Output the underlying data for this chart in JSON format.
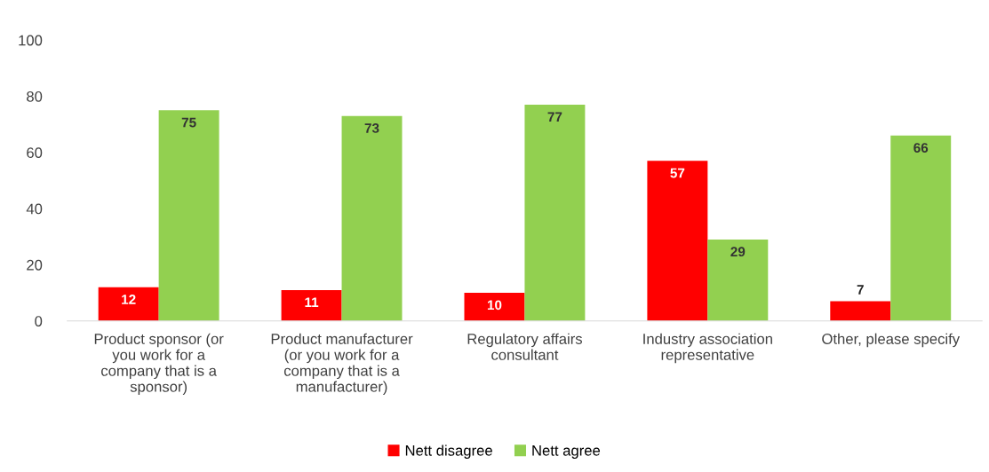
{
  "chart_data": {
    "type": "bar",
    "categories": [
      "Product sponsor (or you work for a company that is a sponsor)",
      "Product manufacturer (or you work for a company that is a manufacturer)",
      "Regulatory affairs consultant",
      "Industry association representative",
      "Other, please specify"
    ],
    "series": [
      {
        "name": "Nett disagree",
        "color": "#ff0000",
        "values": [
          12,
          11,
          10,
          57,
          7
        ]
      },
      {
        "name": "Nett agree",
        "color": "#92d050",
        "values": [
          75,
          73,
          77,
          29,
          66
        ]
      }
    ],
    "ylim": [
      0,
      100
    ],
    "yticks": [
      0,
      20,
      40,
      60,
      80,
      100
    ],
    "data_labels": true,
    "legend": "bottom",
    "grid": false
  }
}
